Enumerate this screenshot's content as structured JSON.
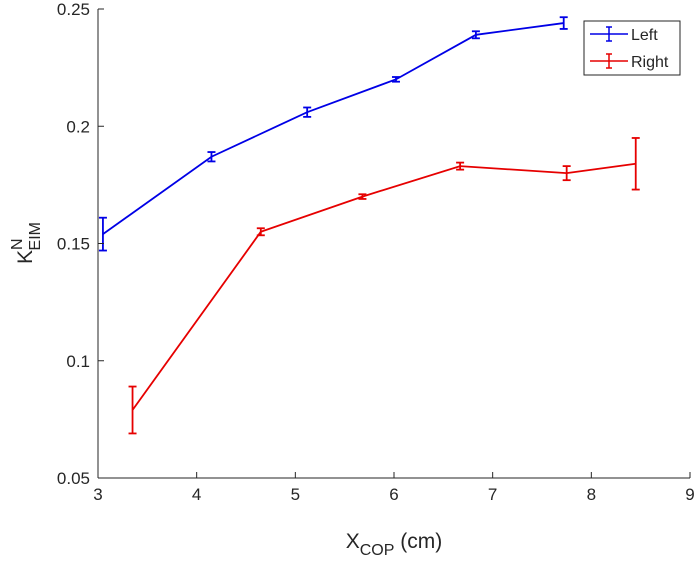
{
  "chart_data": {
    "type": "line",
    "title": "",
    "xlabel": {
      "main": "X",
      "sub": "COP",
      "suffix": " (cm)"
    },
    "ylabel": {
      "main": "K",
      "sup": "N",
      "sub": "EIM"
    },
    "xlim": [
      3,
      9
    ],
    "ylim": [
      0.05,
      0.25
    ],
    "xticks": [
      3,
      4,
      5,
      6,
      7,
      8,
      9
    ],
    "yticks": [
      0.05,
      0.1,
      0.15,
      0.2,
      0.25
    ],
    "xtick_labels": [
      "3",
      "4",
      "5",
      "6",
      "7",
      "8",
      "9"
    ],
    "ytick_labels": [
      "0.05",
      "0.1",
      "0.15",
      "0.2",
      "0.25"
    ],
    "grid": false,
    "legend_position": "top-right",
    "series": [
      {
        "name": "Left",
        "color": "#0000e6",
        "x": [
          3.05,
          4.15,
          5.12,
          6.02,
          6.83,
          7.72
        ],
        "y": [
          0.154,
          0.187,
          0.206,
          0.22,
          0.239,
          0.244
        ],
        "err": [
          0.007,
          0.002,
          0.002,
          0.001,
          0.0015,
          0.0025
        ]
      },
      {
        "name": "Right",
        "color": "#e60000",
        "x": [
          3.35,
          4.65,
          5.68,
          6.67,
          7.75,
          8.45
        ],
        "y": [
          0.079,
          0.155,
          0.17,
          0.183,
          0.18,
          0.184
        ],
        "err": [
          0.01,
          0.0015,
          0.001,
          0.0015,
          0.003,
          0.011
        ]
      }
    ]
  }
}
